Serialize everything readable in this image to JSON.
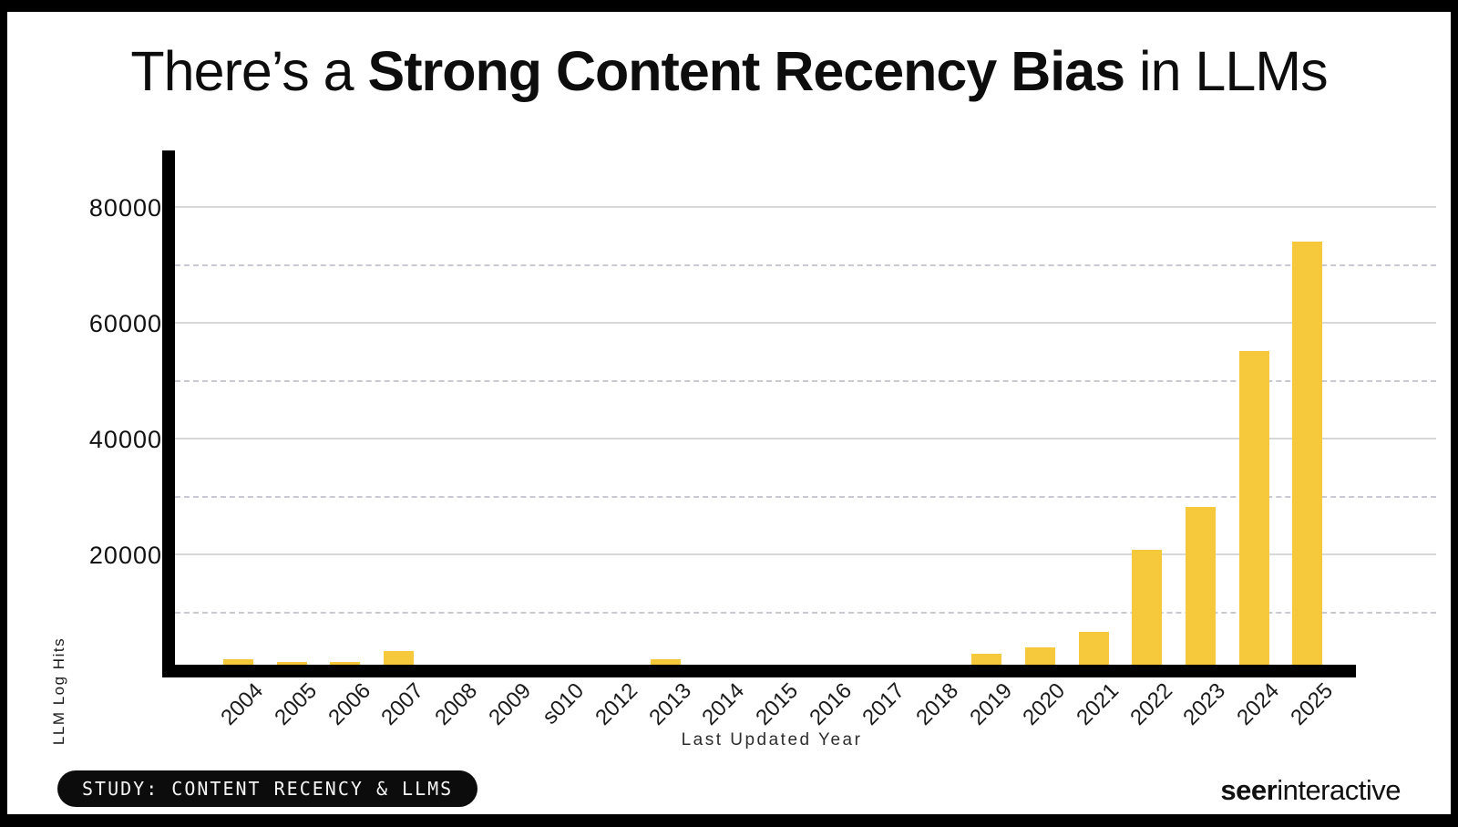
{
  "title": {
    "prefix": "There’s a ",
    "bold": "Strong Content Recency Bias",
    "suffix": " in LLMs"
  },
  "chart_data": {
    "type": "bar",
    "title": "There’s a Strong Content Recency Bias in LLMs",
    "xlabel": "Last Updated Year",
    "ylabel": "LLM Log Hits",
    "categories": [
      "2004",
      "2005",
      "2006",
      "2007",
      "2008",
      "2009",
      "s010",
      "2012",
      "2013",
      "2014",
      "2015",
      "2016",
      "2017",
      "2018",
      "2019",
      "2020",
      "2021",
      "2022",
      "2023",
      "2024",
      "2025"
    ],
    "values": [
      2100,
      1600,
      1600,
      3500,
      0,
      0,
      0,
      0,
      2000,
      0,
      0,
      0,
      0,
      0,
      3000,
      4100,
      6800,
      21000,
      28300,
      55400,
      74200
    ],
    "y_ticks": [
      20000,
      40000,
      60000,
      80000
    ],
    "minor_gridlines": [
      10000,
      30000,
      50000,
      70000
    ],
    "ylim": [
      0,
      90000
    ],
    "bar_color": "#F6C93D",
    "grid": true,
    "legend": false,
    "x_tick_rotation_deg": 45
  },
  "footer": {
    "badge": "STUDY: CONTENT RECENCY & LLMS",
    "logo_bold": "seer",
    "logo_regular": "interactive"
  }
}
